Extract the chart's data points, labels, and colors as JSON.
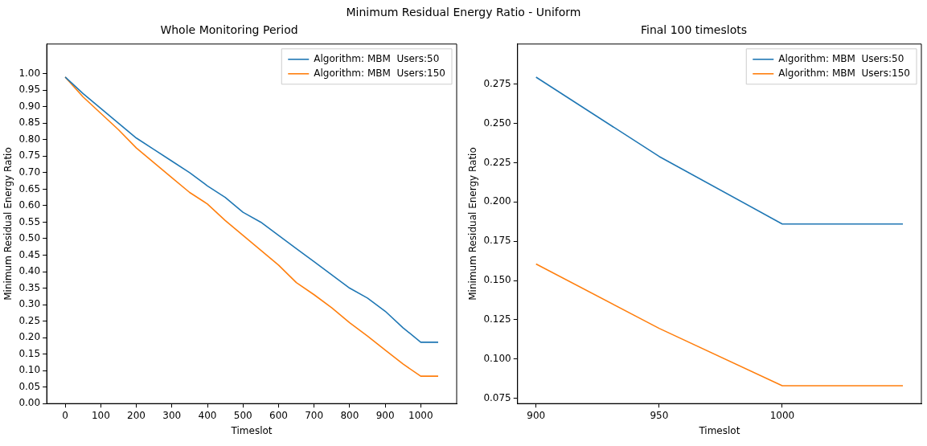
{
  "chart_data": [
    {
      "type": "line",
      "title": "Whole Monitoring Period",
      "xlabel": "Timeslot",
      "ylabel": "Minimum Residual Energy Ratio",
      "annotations": [
        "Minimum Residual Energy Ratio - Uniform"
      ],
      "x": [
        0,
        50,
        100,
        150,
        200,
        250,
        300,
        350,
        400,
        450,
        500,
        550,
        600,
        650,
        700,
        750,
        800,
        850,
        900,
        950,
        1000,
        1049
      ],
      "series": [
        {
          "name": "Algorithm: MBM  Users:50",
          "color": "#1f77b4",
          "values": [
            0.99,
            0.94,
            0.895,
            0.85,
            0.805,
            0.77,
            0.735,
            0.7,
            0.66,
            0.625,
            0.58,
            0.55,
            0.51,
            0.47,
            0.43,
            0.39,
            0.35,
            0.32,
            0.28,
            0.23,
            0.186,
            0.186
          ]
        },
        {
          "name": "Algorithm: MBM  Users:150",
          "color": "#ff7f0e",
          "values": [
            0.99,
            0.93,
            0.88,
            0.83,
            0.775,
            0.73,
            0.685,
            0.64,
            0.605,
            0.555,
            0.51,
            0.465,
            0.42,
            0.367,
            0.33,
            0.29,
            0.245,
            0.205,
            0.162,
            0.12,
            0.083,
            0.083
          ]
        }
      ],
      "xlim": [
        -52,
        1101
      ],
      "xticks": [
        0,
        100,
        200,
        300,
        400,
        500,
        600,
        700,
        800,
        900,
        1000
      ],
      "ylim": [
        0,
        1.09
      ],
      "yticks": [
        {
          "value": 0,
          "label": "0.00"
        },
        0.05,
        {
          "value": 0.1,
          "label": "0.10"
        },
        0.15,
        {
          "value": 0.2,
          "label": "0.20"
        },
        0.25,
        {
          "value": 0.3,
          "label": "0.30"
        },
        0.35,
        {
          "value": 0.4,
          "label": "0.40"
        },
        0.45,
        {
          "value": 0.5,
          "label": "0.50"
        },
        0.55,
        {
          "value": 0.6,
          "label": "0.60"
        },
        0.65,
        {
          "value": 0.7,
          "label": "0.70"
        },
        0.75,
        {
          "value": 0.8,
          "label": "0.80"
        },
        0.85,
        {
          "value": 0.9,
          "label": "0.90"
        },
        0.95,
        {
          "value": 1,
          "label": "1.00"
        }
      ],
      "legend": "top right",
      "grid": false,
      "marker": "none",
      "line_style": "solid"
    },
    {
      "type": "line",
      "title": "Final 100 timeslots",
      "xlabel": "Timeslot",
      "ylabel": "Minimum Residual Energy Ratio",
      "x": [
        900,
        950,
        1000,
        1049
      ],
      "series": [
        {
          "name": "Algorithm: MBM  Users:50",
          "color": "#1f77b4",
          "values": [
            0.2795,
            0.229,
            0.186,
            0.186
          ]
        },
        {
          "name": "Algorithm: MBM  Users:150",
          "color": "#ff7f0e",
          "values": [
            0.1605,
            0.1195,
            0.083,
            0.083
          ]
        }
      ],
      "xlim": [
        892.5,
        1056.5
      ],
      "xticks": [
        900,
        950,
        1000
      ],
      "ylim": [
        0.0716,
        0.3006
      ],
      "yticks": [
        0.075,
        {
          "value": 0.1,
          "label": "0.100"
        },
        0.125,
        {
          "value": 0.15,
          "label": "0.150"
        },
        0.175,
        {
          "value": 0.2,
          "label": "0.200"
        },
        0.225,
        {
          "value": 0.25,
          "label": "0.250"
        },
        0.275
      ],
      "legend": "top right",
      "grid": false,
      "marker": "none",
      "line_style": "solid"
    }
  ]
}
